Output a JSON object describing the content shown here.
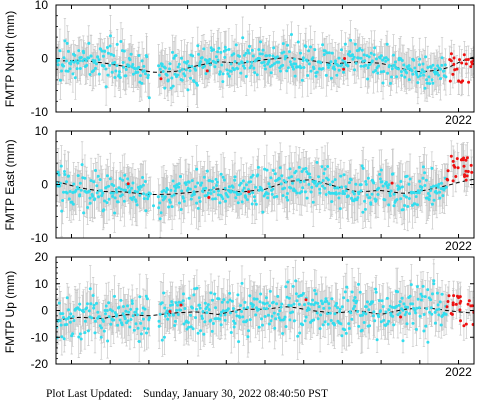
{
  "figure": {
    "footer_label": "Plot Last Updated:",
    "footer_value": "Sunday, January 30, 2022 08:40:50 PST"
  },
  "colors": {
    "points": "#33ddee",
    "recent_points": "#ee1111",
    "error_bars": "#c8c8c8",
    "model_line": "#000000"
  },
  "chart_data": [
    {
      "type": "scatter",
      "ylabel": "FMTP North (mm)",
      "ylim": [
        -10,
        10
      ],
      "yticks": [
        -10,
        0,
        10
      ],
      "xlim": [
        2011.6,
        2022.4
      ],
      "xtick_labels": [
        {
          "x": 2022.0,
          "label": "2022"
        }
      ],
      "trend": {
        "x": [
          2011.6,
          2012.2,
          2012.8,
          2013.4,
          2014.1,
          2014.7,
          2015.2,
          2015.8,
          2016.4,
          2017.0,
          2017.6,
          2018.2,
          2018.8,
          2019.4,
          2020.0,
          2020.6,
          2021.0,
          2021.5,
          2021.8,
          2022.1,
          2022.4
        ],
        "y": [
          -0.5,
          -0.3,
          -0.8,
          -1.5,
          -2.6,
          -2.4,
          -1.4,
          -0.6,
          -0.9,
          -0.2,
          0.2,
          -0.4,
          -1.0,
          -0.6,
          -0.9,
          -2.0,
          -2.5,
          -2.2,
          -1.5,
          -0.4,
          0.3
        ]
      },
      "observations": {
        "count": 520,
        "error_bar_mm": 2.8,
        "scatter_mm": 1.6
      },
      "recent_observations": {
        "x_range": [
          2021.7,
          2022.4
        ],
        "count": 24,
        "y_range": [
          -4.5,
          1.5
        ]
      }
    },
    {
      "type": "scatter",
      "ylabel": "FMTP East (mm)",
      "ylim": [
        -10,
        10
      ],
      "yticks": [
        -10,
        0,
        10
      ],
      "xlim": [
        2011.6,
        2022.4
      ],
      "xtick_labels": [
        {
          "x": 2022.0,
          "label": "2022"
        }
      ],
      "trend": {
        "x": [
          2011.6,
          2012.2,
          2012.8,
          2013.4,
          2014.0,
          2014.6,
          2015.2,
          2015.8,
          2016.4,
          2017.0,
          2017.6,
          2018.2,
          2018.8,
          2019.4,
          2020.0,
          2020.6,
          2021.2,
          2021.7,
          2022.0,
          2022.4
        ],
        "y": [
          0.6,
          -0.6,
          -1.3,
          -1.4,
          -1.9,
          -1.8,
          -1.4,
          -0.8,
          -1.4,
          -0.9,
          0.6,
          0.9,
          -0.3,
          -1.4,
          -1.1,
          -1.7,
          -1.0,
          -0.2,
          0.4,
          1.0
        ]
      },
      "observations": {
        "count": 520,
        "error_bar_mm": 3.2,
        "scatter_mm": 1.8
      },
      "recent_observations": {
        "x_range": [
          2021.7,
          2022.4
        ],
        "count": 26,
        "y_range": [
          0.5,
          5.5
        ]
      }
    },
    {
      "type": "scatter",
      "ylabel": "FMTP Up (mm)",
      "ylim": [
        -20,
        20
      ],
      "yticks": [
        -20,
        -10,
        0,
        10,
        20
      ],
      "xlim": [
        2011.6,
        2022.4
      ],
      "xtick_labels": [
        {
          "x": 2022.0,
          "label": "2022"
        }
      ],
      "trend": {
        "x": [
          2011.6,
          2012.2,
          2012.8,
          2013.4,
          2014.0,
          2014.6,
          2015.2,
          2015.8,
          2016.4,
          2017.0,
          2017.6,
          2018.2,
          2018.8,
          2019.4,
          2020.0,
          2020.6,
          2021.2,
          2021.7,
          2022.0,
          2022.4
        ],
        "y": [
          -3.5,
          -2.5,
          -3.0,
          -1.5,
          -2.0,
          -1.0,
          -0.5,
          -1.5,
          0.5,
          0.5,
          1.5,
          0.0,
          -1.0,
          0.0,
          -1.5,
          0.5,
          1.0,
          0.0,
          -0.5,
          -1.0
        ]
      },
      "observations": {
        "count": 520,
        "error_bar_mm": 6.0,
        "scatter_mm": 4.5
      },
      "recent_observations": {
        "x_range": [
          2021.7,
          2022.4
        ],
        "count": 24,
        "y_range": [
          -6,
          6
        ]
      }
    }
  ]
}
